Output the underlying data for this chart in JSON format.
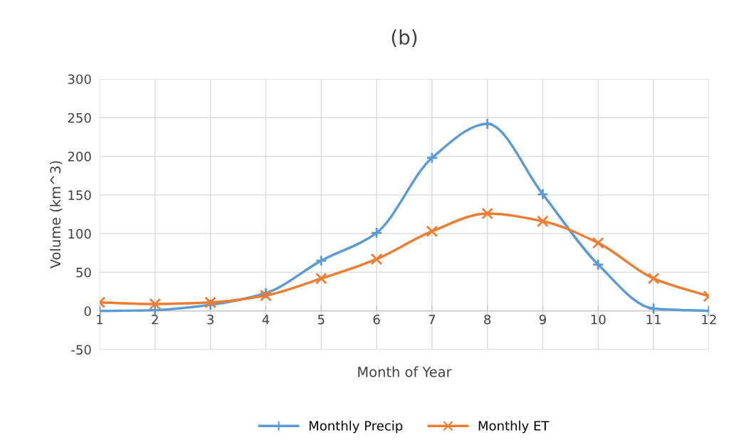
{
  "chart_data": {
    "type": "line",
    "title": "(b)",
    "xlabel": "Month of Year",
    "ylabel": "Volume (km^3)",
    "categories": [
      "1",
      "2",
      "3",
      "4",
      "5",
      "6",
      "7",
      "8",
      "9",
      "10",
      "11",
      "12"
    ],
    "series": [
      {
        "name": "Monthly Precip",
        "color": "#5b9bd5",
        "marker": "plus",
        "values": [
          0,
          1,
          8,
          23,
          65,
          101,
          198,
          242,
          151,
          60,
          3,
          0
        ]
      },
      {
        "name": "Monthly ET",
        "color": "#ed7d31",
        "marker": "cross",
        "values": [
          11,
          9,
          11,
          20,
          42,
          67,
          103,
          126,
          116,
          88,
          42,
          19
        ]
      }
    ],
    "ylim": [
      -50,
      300
    ],
    "yticks": [
      -50,
      0,
      50,
      100,
      150,
      200,
      250,
      300
    ],
    "grid": true,
    "legend": "bottom",
    "line_style": "solid"
  }
}
